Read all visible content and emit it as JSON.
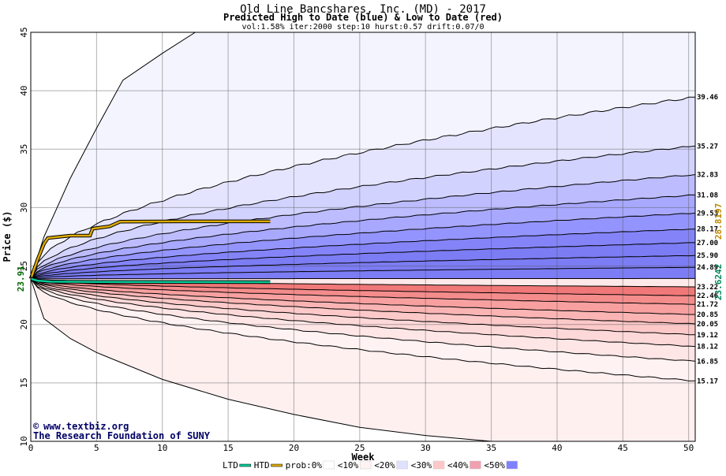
{
  "chart_data": {
    "type": "area",
    "title": "Old Line Bancshares, Inc. (MD) - 2017",
    "subtitle": "Predicted High to Date (blue) &  Low to Date (red)",
    "params": "vol:1.58% iter:2000 step:10 hurst:0.57 drift:0.07/0",
    "xlabel": "Week",
    "ylabel": "Price ($)",
    "xlim": [
      0,
      50.5
    ],
    "ylim": [
      10,
      45
    ],
    "x_ticks": [
      0,
      5,
      10,
      15,
      20,
      25,
      30,
      35,
      40,
      45,
      50
    ],
    "y_ticks": [
      10,
      15,
      20,
      25,
      30,
      35,
      40,
      45
    ],
    "grid": true,
    "start_price": 23.91,
    "start_label": "23.91",
    "ltd_label": "23.6242",
    "ltd_value": 23.6242,
    "htd_label": "28.8197",
    "htd_value": 28.8197,
    "high_quantiles": [
      {
        "label": "39.46",
        "end": 39.46,
        "p": 0.02
      },
      {
        "label": "35.27",
        "end": 35.27,
        "p": 0.1
      },
      {
        "label": "32.83",
        "end": 32.83,
        "p": 0.2
      },
      {
        "label": "31.08",
        "end": 31.08,
        "p": 0.3
      },
      {
        "label": "29.53",
        "end": 29.53,
        "p": 0.4
      },
      {
        "label": "28.17",
        "end": 28.17,
        "p": 0.5
      },
      {
        "label": "27.00",
        "end": 27.0,
        "p": 0.6
      },
      {
        "label": "25.90",
        "end": 25.9,
        "p": 0.7
      },
      {
        "label": "24.89",
        "end": 24.89,
        "p": 0.8
      }
    ],
    "low_quantiles": [
      {
        "label": "23.22",
        "end": 23.22,
        "p": 0.8
      },
      {
        "label": "22.46",
        "end": 22.46,
        "p": 0.7
      },
      {
        "label": "21.72",
        "end": 21.72,
        "p": 0.6
      },
      {
        "label": "20.85",
        "end": 20.85,
        "p": 0.5
      },
      {
        "label": "20.05",
        "end": 20.05,
        "p": 0.4
      },
      {
        "label": "19.12",
        "end": 19.12,
        "p": 0.3
      },
      {
        "label": "18.12",
        "end": 18.12,
        "p": 0.2
      },
      {
        "label": "16.85",
        "end": 16.85,
        "p": 0.1
      },
      {
        "label": "15.17",
        "end": 15.17,
        "p": 0.02
      }
    ],
    "extreme_high": [
      [
        0,
        23.91
      ],
      [
        1,
        27.5
      ],
      [
        3,
        32.5
      ],
      [
        5,
        36.8
      ],
      [
        7,
        40.9
      ],
      [
        10,
        43.2
      ],
      [
        12.5,
        45.0
      ]
    ],
    "extreme_low": [
      [
        0,
        23.91
      ],
      [
        1,
        20.5
      ],
      [
        3,
        18.8
      ],
      [
        5,
        17.6
      ],
      [
        10,
        15.3
      ],
      [
        15,
        13.6
      ],
      [
        20,
        12.3
      ],
      [
        25,
        11.2
      ],
      [
        30,
        10.5
      ],
      [
        35,
        10.0
      ]
    ],
    "htd_series": [
      [
        0,
        23.91
      ],
      [
        0.5,
        25.5
      ],
      [
        1,
        26.9
      ],
      [
        1.3,
        27.4
      ],
      [
        3,
        27.6
      ],
      [
        4.5,
        27.6
      ],
      [
        4.7,
        28.2
      ],
      [
        6,
        28.4
      ],
      [
        6.8,
        28.8
      ],
      [
        12,
        28.82
      ],
      [
        18.2,
        28.82
      ]
    ],
    "ltd_series": [
      [
        0,
        23.91
      ],
      [
        0.5,
        23.75
      ],
      [
        1.5,
        23.66
      ],
      [
        5,
        23.64
      ],
      [
        18.2,
        23.62
      ]
    ],
    "legend": [
      {
        "label": "LTD",
        "color": "#00cc99",
        "kind": "line"
      },
      {
        "label": "HTD",
        "color": "#ddaa00",
        "kind": "line"
      },
      {
        "label": "prob:0%",
        "color": "#ffffff",
        "kind": "swatch"
      },
      {
        "label": "<10%",
        "color": "#fff2f2",
        "kind": "swatch"
      },
      {
        "label": "<20%",
        "color": "#e0e0ff",
        "kind": "swatch"
      },
      {
        "label": "<30%",
        "color": "#ffc8c8",
        "kind": "swatch"
      },
      {
        "label": "<40%",
        "color": "#f0a0b0",
        "kind": "swatch"
      },
      {
        "label": "<50%",
        "color": "#8080ff",
        "kind": "swatch"
      }
    ],
    "colors": {
      "high_bands": [
        "#f4f4ff",
        "#e4e4ff",
        "#d2d2ff",
        "#bcbcff",
        "#a8a8ff",
        "#9494ff",
        "#8484f8",
        "#7c7cf4"
      ],
      "low_bands": [
        "#f07878",
        "#f48c8c",
        "#f8a0a0",
        "#fab4b4",
        "#fcc8c8",
        "#fdd8d8",
        "#ffe6e6",
        "#fff2f2"
      ],
      "htd": "#ddaa00",
      "ltd": "#00cc99",
      "htd_label": "#bb8800",
      "ltd_label": "#008855",
      "start_label": "#006600"
    }
  },
  "credit": {
    "site": "www.textbiz.org",
    "org": "The Research Foundation of SUNY"
  }
}
